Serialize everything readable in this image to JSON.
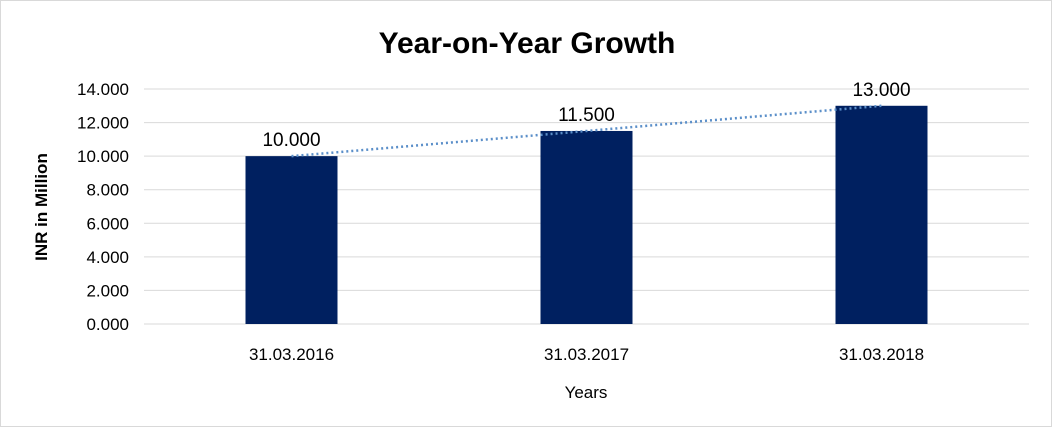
{
  "chart_data": {
    "type": "bar",
    "title": "Year-on-Year Growth",
    "xlabel": "Years",
    "ylabel": "INR in Million",
    "categories": [
      "31.03.2016",
      "31.03.2017",
      "31.03.2018"
    ],
    "values": [
      10.0,
      11.5,
      13.0
    ],
    "value_labels": [
      "10.000",
      "11.500",
      "13.000"
    ],
    "y_ticks": [
      0,
      2,
      4,
      6,
      8,
      10,
      12,
      14
    ],
    "y_tick_labels": [
      "0.000",
      "2.000",
      "4.000",
      "6.000",
      "8.000",
      "10.000",
      "12.000",
      "14.000"
    ],
    "ylim": [
      0,
      14
    ],
    "grid": true,
    "trendline": "linear",
    "colors": {
      "bar": "#002060",
      "trendline": "#5b8fc9",
      "grid": "#d9d9d9"
    }
  }
}
